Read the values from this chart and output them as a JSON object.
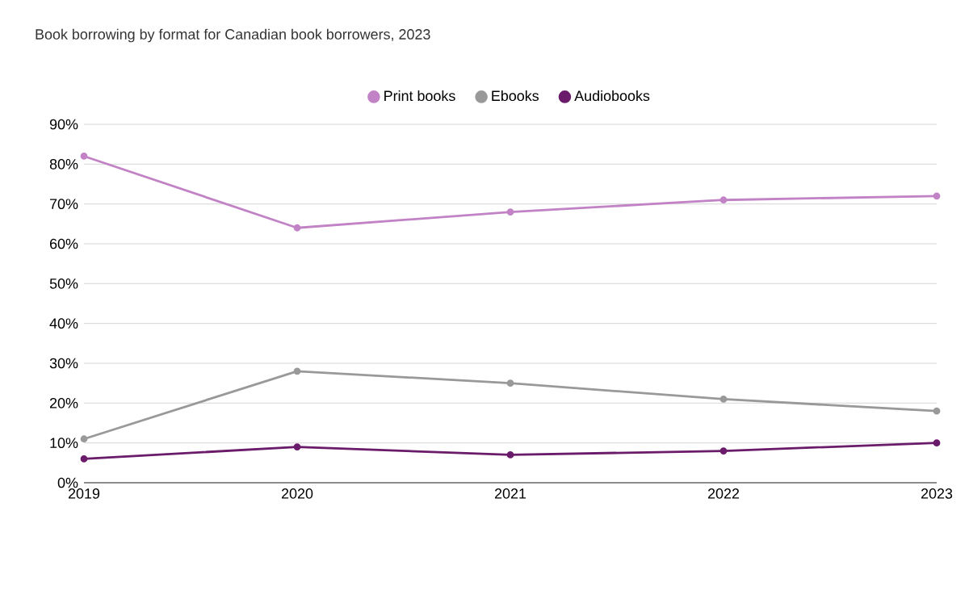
{
  "chart_data": {
    "type": "line",
    "title": "Book borrowing by format for Canadian book borrowers, 2023",
    "x": [
      2019,
      2020,
      2021,
      2022,
      2023
    ],
    "series": [
      {
        "name": "Print books",
        "color": "#c283c6",
        "values": [
          82,
          64,
          68,
          71,
          72
        ]
      },
      {
        "name": "Ebooks",
        "color": "#999999",
        "values": [
          11,
          28,
          25,
          21,
          18
        ]
      },
      {
        "name": "Audiobooks",
        "color": "#6a1b6a",
        "values": [
          6,
          9,
          7,
          8,
          10
        ]
      }
    ],
    "xlim": [
      2019,
      2023
    ],
    "xticks": [
      2019,
      2020,
      2021,
      2022,
      2023
    ],
    "ylim": [
      0,
      90
    ],
    "yticks": [
      {
        "value": 0,
        "label": "0%"
      },
      {
        "value": 10,
        "label": "10%"
      },
      {
        "value": 20,
        "label": "20%"
      },
      {
        "value": 30,
        "label": "30%"
      },
      {
        "value": 40,
        "label": "40%"
      },
      {
        "value": 50,
        "label": "50%"
      },
      {
        "value": 60,
        "label": "60%"
      },
      {
        "value": 70,
        "label": "70%"
      },
      {
        "value": 80,
        "label": "80%"
      },
      {
        "value": 90,
        "label": "90%"
      }
    ],
    "grid": "y",
    "legend": "top",
    "marker": "circle",
    "line_style": "solid"
  }
}
